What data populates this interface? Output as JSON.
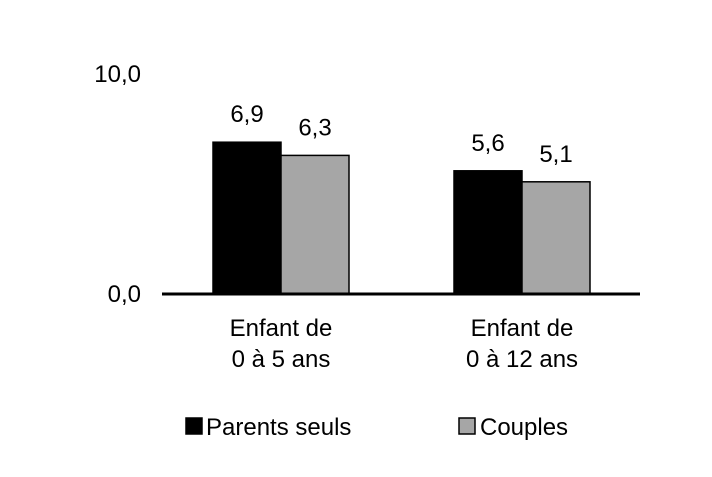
{
  "chart_data": {
    "type": "bar",
    "categories": [
      [
        "Enfant de",
        "0 à 5 ans"
      ],
      [
        "Enfant de",
        "0 à 12 ans"
      ]
    ],
    "series": [
      {
        "name": "Parents seuls",
        "values": [
          6.9,
          5.6
        ],
        "labels": [
          "6,9",
          "5,6"
        ],
        "color": "#000000"
      },
      {
        "name": "Couples",
        "values": [
          6.3,
          5.1
        ],
        "labels": [
          "6,3",
          "5,1"
        ],
        "color": "#a6a6a6"
      }
    ],
    "yticks": [
      {
        "value": 0,
        "label": "0,0"
      },
      {
        "value": 10,
        "label": "10,0"
      }
    ],
    "ylim": [
      0,
      10
    ],
    "grid": false,
    "legend_position": "bottom"
  }
}
